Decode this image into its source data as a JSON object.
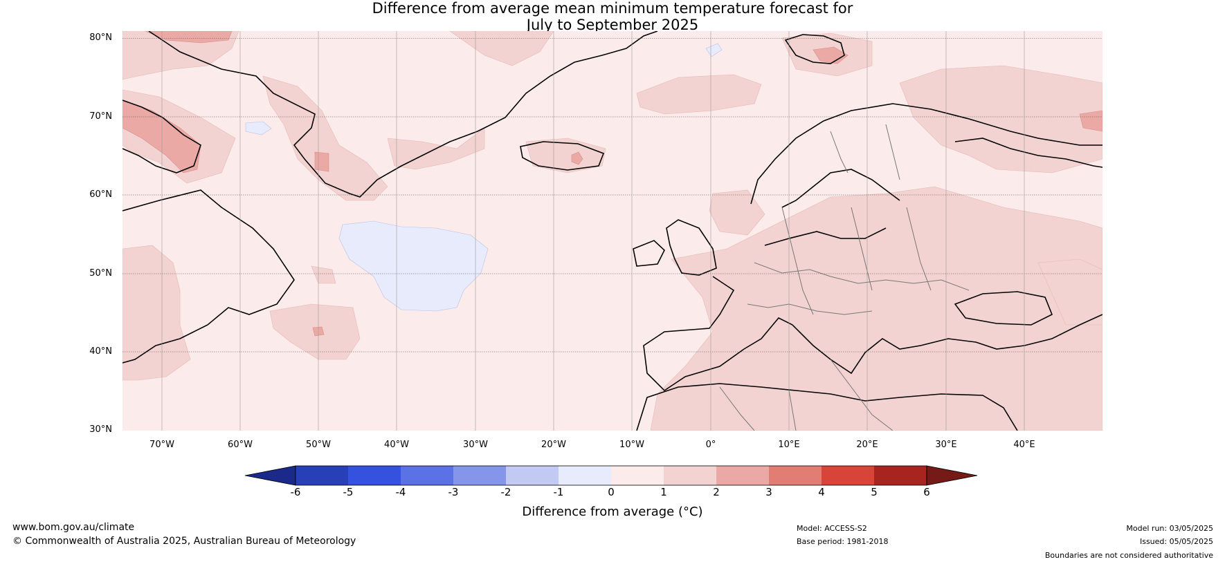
{
  "title": {
    "line1": "Difference from average mean minimum temperature forecast for",
    "line2": "July to September 2025"
  },
  "map": {
    "lat_ticks": [
      "80°N",
      "70°N",
      "60°N",
      "50°N",
      "40°N",
      "30°N"
    ],
    "lon_ticks": [
      "70°W",
      "60°W",
      "50°W",
      "40°W",
      "30°W",
      "20°W",
      "10°W",
      "0°",
      "10°E",
      "20°E",
      "30°E",
      "40°E"
    ],
    "lon_range": [
      -75,
      50
    ],
    "lat_range": [
      30,
      81
    ],
    "background_anomaly_class": "0 to 1"
  },
  "colorbar": {
    "ticks": [
      "-6",
      "-5",
      "-4",
      "-3",
      "-2",
      "-1",
      "0",
      "1",
      "2",
      "3",
      "4",
      "5",
      "6"
    ],
    "colors": [
      "#1b2a8a",
      "#2740b8",
      "#3452df",
      "#5b72e6",
      "#8495ea",
      "#c2c9f3",
      "#e8ebfb",
      "#fbebea",
      "#f3d3d1",
      "#eaa9a5",
      "#e27d74",
      "#d84438",
      "#a8241e",
      "#751a17"
    ],
    "label": "Difference from average (°C)"
  },
  "footer": {
    "website": "www.bom.gov.au/climate",
    "copyright": "© Commonwealth of Australia 2025, Australian Bureau of Meteorology",
    "model": "Model: ACCESS-S2",
    "base_period": "Base period: 1981-2018",
    "model_run": "Model run: 03/05/2025",
    "issued": "Issued: 05/05/2025",
    "disclaimer": "Boundaries are not considered authoritative"
  }
}
